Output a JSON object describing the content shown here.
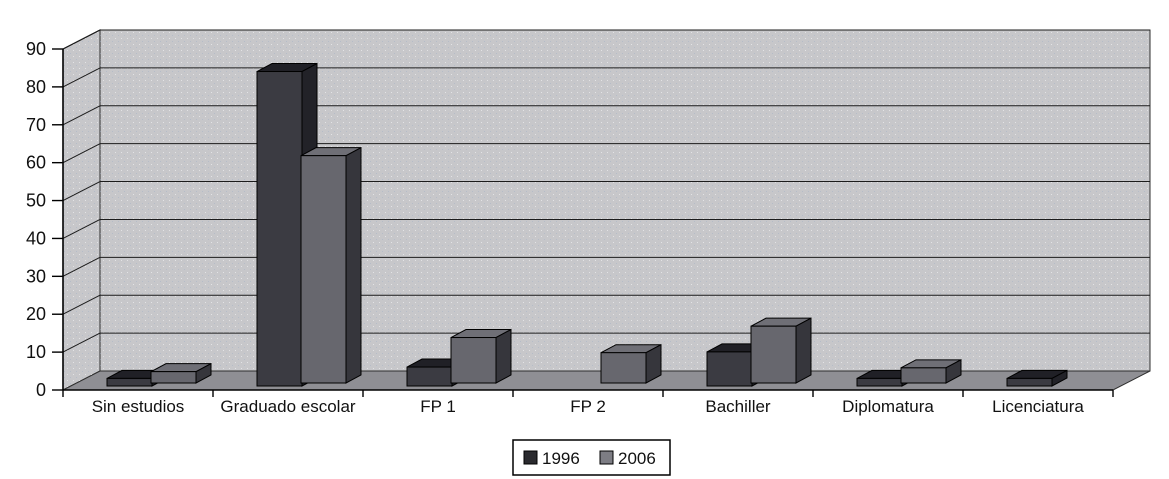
{
  "chart_data": {
    "type": "bar",
    "variant": "3d-clustered-column",
    "title": "",
    "xlabel": "",
    "ylabel": "",
    "categories": [
      "Sin estudios",
      "Graduado escolar",
      "FP 1",
      "FP 2",
      "Bachiller",
      "Diplomatura",
      "Licenciatura"
    ],
    "series": [
      {
        "name": "1996",
        "values": [
          2,
          83,
          5,
          0,
          9,
          2,
          2
        ],
        "colors": {
          "front": "#3b3b42",
          "top": "#202026",
          "side": "#222228",
          "legend": "#2a2a2e"
        }
      },
      {
        "name": "2006",
        "values": [
          3,
          60,
          12,
          8,
          15,
          4,
          0
        ],
        "colors": {
          "front": "#67676e",
          "top": "#6f6f76",
          "side": "#36363c",
          "legend": "#7d7d84"
        }
      }
    ],
    "ylim": [
      0,
      90
    ],
    "ytick_step": 10,
    "yticks": [
      0,
      10,
      20,
      30,
      40,
      50,
      60,
      70,
      80,
      90
    ],
    "grid": "on",
    "legend": {
      "position": "bottom"
    },
    "palette": {
      "background": "#ffffff",
      "wall": "#c7c7ca",
      "floor": "#8f8f94",
      "gridline": "#1c1c1c",
      "wall_edge": "#2f2f2f",
      "axis": "#000000",
      "legend_background": "#ffffff",
      "legend_border": "#000000",
      "text": "#111111"
    }
  }
}
